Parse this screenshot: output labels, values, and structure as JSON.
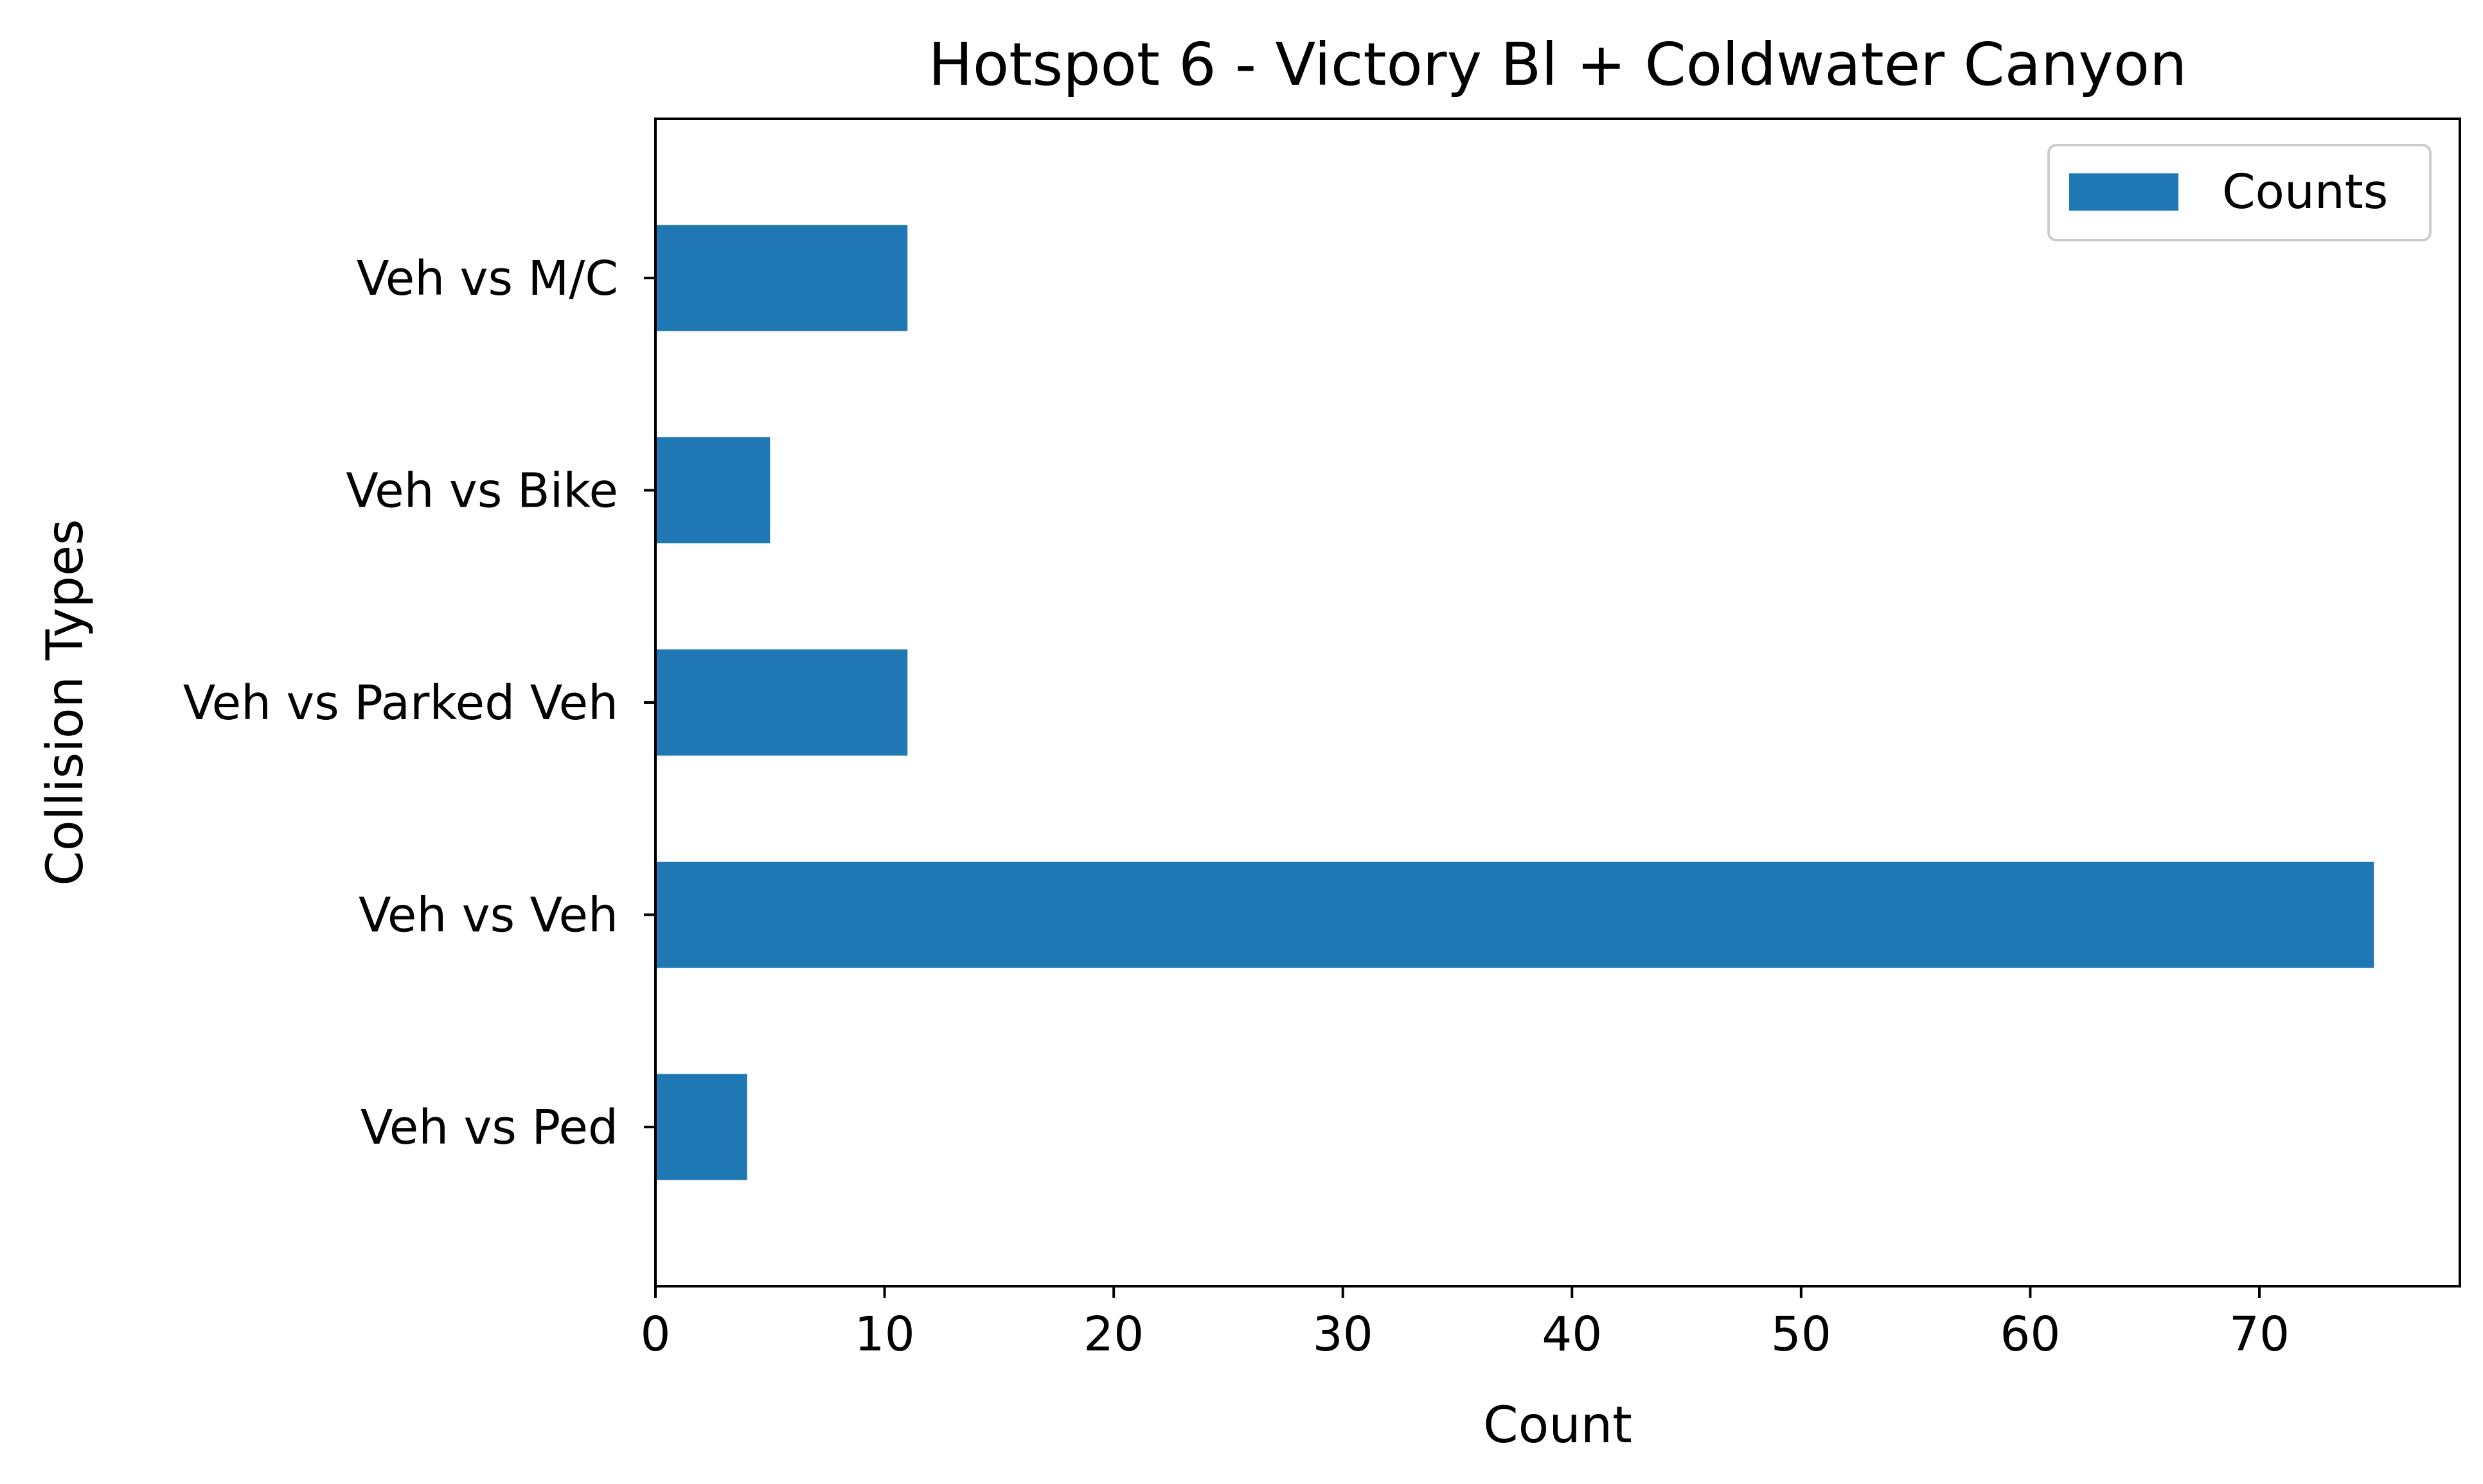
{
  "chart_data": {
    "type": "bar",
    "orientation": "horizontal",
    "title": "Hotspot 6 - Victory Bl + Coldwater Canyon",
    "xlabel": "Count",
    "ylabel": "Collision Types",
    "categories": [
      "Veh vs Ped",
      "Veh vs Veh",
      "Veh vs Parked Veh",
      "Veh vs Bike",
      "Veh vs M/C"
    ],
    "series": [
      {
        "name": "Counts",
        "values": [
          4,
          75,
          11,
          5,
          11
        ],
        "color": "#1f77b4"
      }
    ],
    "xlim": [
      0,
      78.75
    ],
    "xticks": [
      0,
      10,
      20,
      30,
      40,
      50,
      60,
      70
    ],
    "grid": false,
    "legend_position": "top-right"
  }
}
